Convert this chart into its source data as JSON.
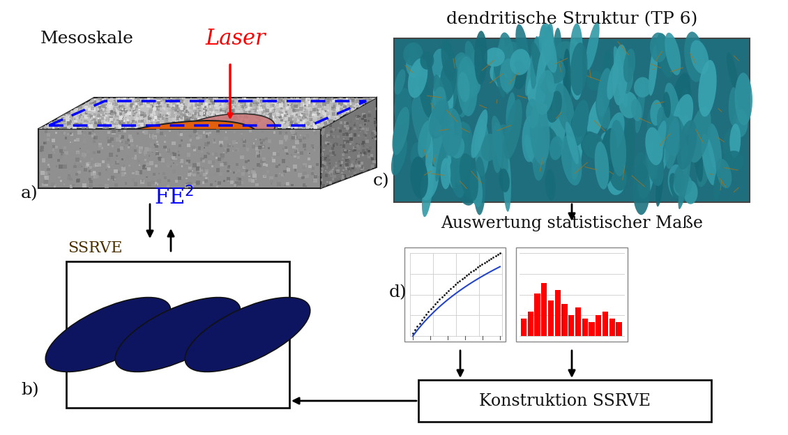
{
  "panel_a_label": "a)",
  "panel_b_label": "b)",
  "panel_c_label": "c)",
  "panel_d_label": "d)",
  "mesoskale_text": "Mesoskale",
  "laser_text": "Laser",
  "laser_color": "#ff0000",
  "fe2_text": "FE$^2$",
  "fe2_color": "#0000ff",
  "ssrve_text": "SSRVE",
  "ssrve_color": "#4a3000",
  "dendritische_text": "dendritische Struktur (TP 6)",
  "auswertung_text": "Auswertung statistischer Maße",
  "konstruktion_text": "Konstruktion SSRVE",
  "bg_color": "#ffffff",
  "blue_dashed_color": "#0000ff",
  "orange_color": "#e06010",
  "pink_color": "#c87878",
  "dark_navy": "#0d1560",
  "red_bar_color": "#ff0000"
}
